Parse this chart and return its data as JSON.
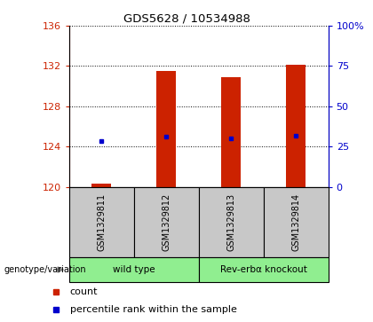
{
  "title": "GDS5628 / 10534988",
  "samples": [
    "GSM1329811",
    "GSM1329812",
    "GSM1329813",
    "GSM1329814"
  ],
  "bar_values": [
    120.3,
    131.5,
    130.9,
    132.1
  ],
  "percentile_values": [
    124.5,
    125.0,
    124.8,
    125.1
  ],
  "ylim_left": [
    120,
    136
  ],
  "ylim_right": [
    0,
    100
  ],
  "yticks_left": [
    120,
    124,
    128,
    132,
    136
  ],
  "yticks_right": [
    0,
    25,
    50,
    75,
    100
  ],
  "bar_color": "#CC2200",
  "dot_color": "#0000CC",
  "bar_width": 0.3,
  "background_color": "#ffffff",
  "group_labels": [
    "wild type",
    "Rev-erbα knockout"
  ],
  "group_light_green": "#90EE90",
  "group_dark_green": "#4CBB7F"
}
